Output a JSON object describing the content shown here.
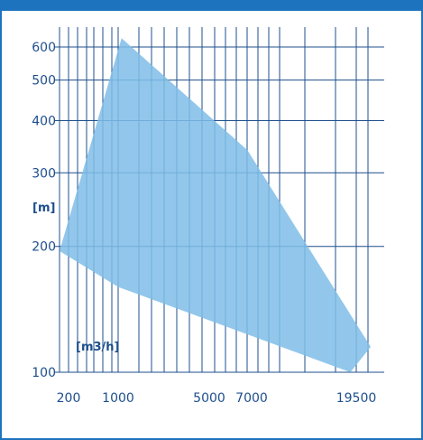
{
  "chart_data": {
    "type": "area",
    "title": "",
    "xlabel": "[m3/h]",
    "ylabel": "[m]",
    "xticks": [
      "200",
      "1000",
      "5000",
      "7000",
      "19500"
    ],
    "yticks": [
      "100",
      "200",
      "300",
      "400",
      "500",
      "600"
    ],
    "grid": true,
    "region": [
      {
        "x": "150",
        "y": 195
      },
      {
        "x": "1150",
        "y": 630
      },
      {
        "x": "6800",
        "y": 340
      },
      {
        "x": "19900",
        "y": 115
      },
      {
        "x": "18800",
        "y": 100
      },
      {
        "x": "1000",
        "y": 160
      },
      {
        "x": "150",
        "y": 195
      }
    ],
    "colors": {
      "frame": "#1e73be",
      "grid": "#1e4f8c",
      "fill": "#7fbde7",
      "text": "#1e4f8c"
    }
  }
}
